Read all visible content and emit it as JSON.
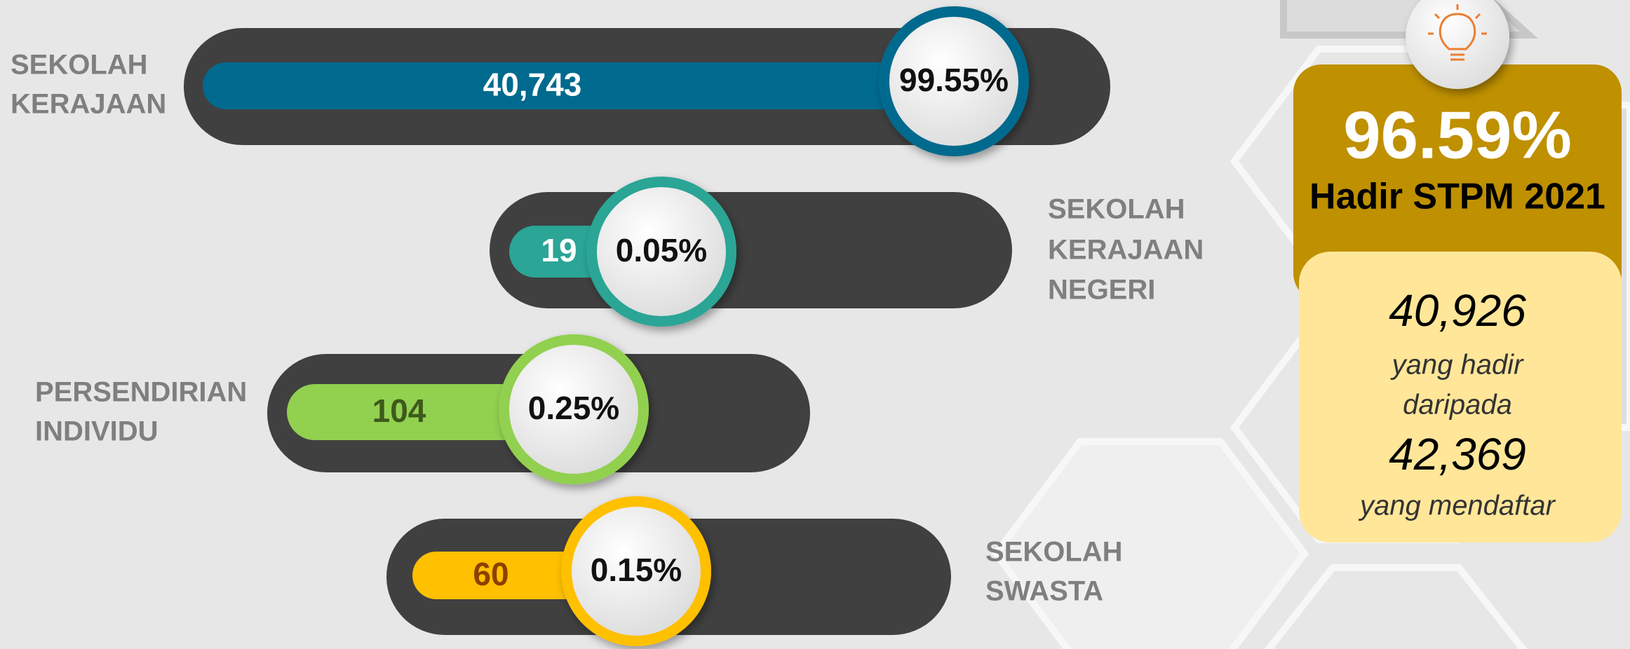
{
  "rows": [
    {
      "label": [
        "SEKOLAH",
        "KERAJAAN"
      ],
      "count": "40,743",
      "percent": "99.55%"
    },
    {
      "label": [
        "SEKOLAH",
        "KERAJAAN",
        "NEGERI"
      ],
      "count": "19",
      "percent": "0.05%"
    },
    {
      "label": [
        "PERSENDIRIAN",
        "INDIVIDU"
      ],
      "count": "104",
      "percent": "0.25%"
    },
    {
      "label": [
        "SEKOLAH",
        "SWASTA"
      ],
      "count": "60",
      "percent": "0.15%"
    }
  ],
  "summary": {
    "rate": "96.59%",
    "caption": "Hadir STPM 2021",
    "attended": "40,926",
    "attended_text": [
      "yang hadir",
      "daripada"
    ],
    "registered": "42,369",
    "registered_text": "yang mendaftar"
  }
}
